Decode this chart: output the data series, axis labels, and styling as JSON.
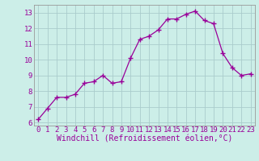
{
  "x": [
    0,
    1,
    2,
    3,
    4,
    5,
    6,
    7,
    8,
    9,
    10,
    11,
    12,
    13,
    14,
    15,
    16,
    17,
    18,
    19,
    20,
    21,
    22,
    23
  ],
  "y": [
    6.2,
    6.9,
    7.6,
    7.6,
    7.8,
    8.5,
    8.6,
    9.0,
    8.5,
    8.6,
    10.1,
    11.3,
    11.5,
    11.9,
    12.6,
    12.6,
    12.9,
    13.1,
    12.5,
    12.3,
    10.4,
    9.5,
    9.0,
    9.1
  ],
  "line_color": "#990099",
  "marker": "+",
  "marker_size": 4,
  "xlabel": "Windchill (Refroidissement éolien,°C)",
  "xlabel_fontsize": 7,
  "ylabel_ticks": [
    6,
    7,
    8,
    9,
    10,
    11,
    12,
    13
  ],
  "xtick_labels": [
    "0",
    "1",
    "2",
    "3",
    "4",
    "5",
    "6",
    "7",
    "8",
    "9",
    "10",
    "11",
    "12",
    "13",
    "14",
    "15",
    "16",
    "17",
    "18",
    "19",
    "20",
    "21",
    "22",
    "23"
  ],
  "ylim": [
    5.8,
    13.5
  ],
  "xlim": [
    -0.5,
    23.5
  ],
  "bg_color": "#cceee8",
  "grid_color": "#aacccc",
  "tick_fontsize": 6.5
}
